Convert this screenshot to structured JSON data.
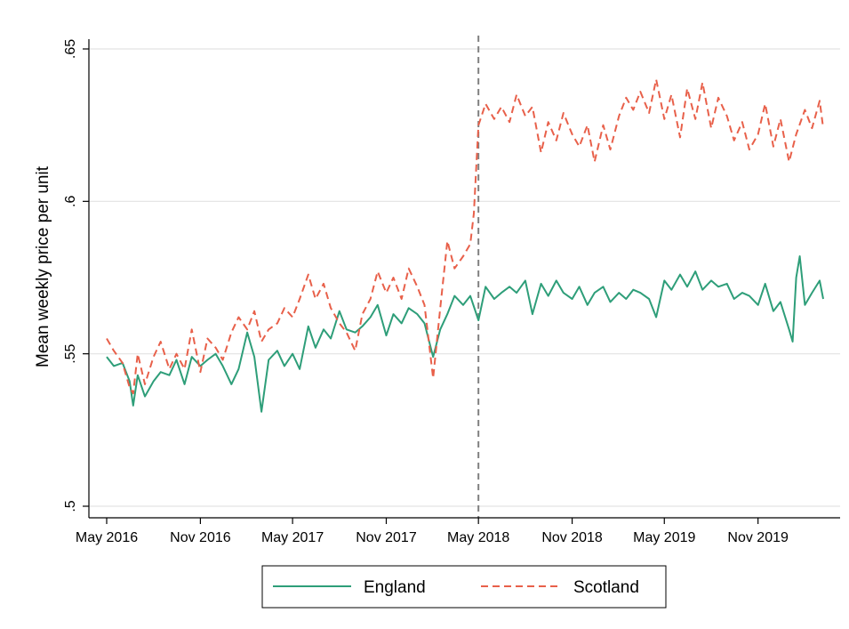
{
  "chart_data": {
    "type": "line",
    "title": "",
    "xlabel": "",
    "ylabel": "Mean weekly price per unit",
    "ylim": [
      0.5,
      0.65
    ],
    "xlim": [
      "2016-05-01",
      "2020-03-15"
    ],
    "yticks": [
      {
        "value": 0.5,
        "label": ".5"
      },
      {
        "value": 0.55,
        "label": ".55"
      },
      {
        "value": 0.6,
        "label": ".6"
      },
      {
        "value": 0.65,
        "label": ".65"
      }
    ],
    "xticks": [
      {
        "date": "2016-05-01",
        "label": "May 2016"
      },
      {
        "date": "2016-11-01",
        "label": "Nov 2016"
      },
      {
        "date": "2017-05-01",
        "label": "May 2017"
      },
      {
        "date": "2017-11-01",
        "label": "Nov 2017"
      },
      {
        "date": "2018-05-01",
        "label": "May 2018"
      },
      {
        "date": "2018-11-01",
        "label": "Nov 2018"
      },
      {
        "date": "2019-05-01",
        "label": "May 2019"
      },
      {
        "date": "2019-11-01",
        "label": "Nov 2019"
      }
    ],
    "grid": true,
    "vline": {
      "date": "2018-05-01",
      "style": "dashed",
      "color": "#808080"
    },
    "legend_position": "bottom",
    "series": [
      {
        "name": "England",
        "color": "#2e9e79",
        "dash": "solid",
        "points": [
          [
            "2016-05-01",
            0.549
          ],
          [
            "2016-05-15",
            0.546
          ],
          [
            "2016-06-01",
            0.547
          ],
          [
            "2016-06-15",
            0.541
          ],
          [
            "2016-06-22",
            0.533
          ],
          [
            "2016-07-01",
            0.543
          ],
          [
            "2016-07-15",
            0.536
          ],
          [
            "2016-08-01",
            0.541
          ],
          [
            "2016-08-15",
            0.544
          ],
          [
            "2016-09-01",
            0.543
          ],
          [
            "2016-09-15",
            0.548
          ],
          [
            "2016-10-01",
            0.54
          ],
          [
            "2016-10-15",
            0.549
          ],
          [
            "2016-11-01",
            0.546
          ],
          [
            "2016-11-15",
            0.548
          ],
          [
            "2016-12-01",
            0.55
          ],
          [
            "2016-12-15",
            0.546
          ],
          [
            "2017-01-01",
            0.54
          ],
          [
            "2017-01-15",
            0.545
          ],
          [
            "2017-02-01",
            0.557
          ],
          [
            "2017-02-15",
            0.549
          ],
          [
            "2017-03-01",
            0.531
          ],
          [
            "2017-03-15",
            0.548
          ],
          [
            "2017-04-01",
            0.551
          ],
          [
            "2017-04-15",
            0.546
          ],
          [
            "2017-05-01",
            0.55
          ],
          [
            "2017-05-15",
            0.545
          ],
          [
            "2017-06-01",
            0.559
          ],
          [
            "2017-06-15",
            0.552
          ],
          [
            "2017-07-01",
            0.558
          ],
          [
            "2017-07-15",
            0.555
          ],
          [
            "2017-08-01",
            0.564
          ],
          [
            "2017-08-15",
            0.558
          ],
          [
            "2017-09-01",
            0.557
          ],
          [
            "2017-09-15",
            0.559
          ],
          [
            "2017-10-01",
            0.562
          ],
          [
            "2017-10-15",
            0.566
          ],
          [
            "2017-11-01",
            0.556
          ],
          [
            "2017-11-15",
            0.563
          ],
          [
            "2017-12-01",
            0.56
          ],
          [
            "2017-12-15",
            0.565
          ],
          [
            "2018-01-01",
            0.563
          ],
          [
            "2018-01-15",
            0.56
          ],
          [
            "2018-02-01",
            0.549
          ],
          [
            "2018-02-15",
            0.558
          ],
          [
            "2018-03-01",
            0.563
          ],
          [
            "2018-03-15",
            0.569
          ],
          [
            "2018-04-01",
            0.566
          ],
          [
            "2018-04-15",
            0.569
          ],
          [
            "2018-05-01",
            0.561
          ],
          [
            "2018-05-15",
            0.572
          ],
          [
            "2018-06-01",
            0.568
          ],
          [
            "2018-06-15",
            0.57
          ],
          [
            "2018-07-01",
            0.572
          ],
          [
            "2018-07-15",
            0.57
          ],
          [
            "2018-08-01",
            0.574
          ],
          [
            "2018-08-15",
            0.563
          ],
          [
            "2018-09-01",
            0.573
          ],
          [
            "2018-09-15",
            0.569
          ],
          [
            "2018-10-01",
            0.574
          ],
          [
            "2018-10-15",
            0.57
          ],
          [
            "2018-11-01",
            0.568
          ],
          [
            "2018-11-15",
            0.572
          ],
          [
            "2018-12-01",
            0.566
          ],
          [
            "2018-12-15",
            0.57
          ],
          [
            "2019-01-01",
            0.572
          ],
          [
            "2019-01-15",
            0.567
          ],
          [
            "2019-02-01",
            0.57
          ],
          [
            "2019-02-15",
            0.568
          ],
          [
            "2019-03-01",
            0.571
          ],
          [
            "2019-03-15",
            0.57
          ],
          [
            "2019-04-01",
            0.568
          ],
          [
            "2019-04-15",
            0.562
          ],
          [
            "2019-05-01",
            0.574
          ],
          [
            "2019-05-15",
            0.571
          ],
          [
            "2019-06-01",
            0.576
          ],
          [
            "2019-06-15",
            0.572
          ],
          [
            "2019-07-01",
            0.577
          ],
          [
            "2019-07-15",
            0.571
          ],
          [
            "2019-08-01",
            0.574
          ],
          [
            "2019-08-15",
            0.572
          ],
          [
            "2019-09-01",
            0.573
          ],
          [
            "2019-09-15",
            0.568
          ],
          [
            "2019-10-01",
            0.57
          ],
          [
            "2019-10-15",
            0.569
          ],
          [
            "2019-11-01",
            0.566
          ],
          [
            "2019-11-15",
            0.573
          ],
          [
            "2019-12-01",
            0.564
          ],
          [
            "2019-12-15",
            0.567
          ],
          [
            "2020-01-01",
            0.558
          ],
          [
            "2020-01-08",
            0.554
          ],
          [
            "2020-01-15",
            0.575
          ],
          [
            "2020-01-22",
            0.582
          ],
          [
            "2020-02-01",
            0.566
          ],
          [
            "2020-02-15",
            0.57
          ],
          [
            "2020-03-01",
            0.574
          ],
          [
            "2020-03-08",
            0.568
          ]
        ]
      },
      {
        "name": "Scotland",
        "color": "#e8604a",
        "dash": "dashed",
        "points": [
          [
            "2016-05-01",
            0.555
          ],
          [
            "2016-05-15",
            0.551
          ],
          [
            "2016-06-01",
            0.547
          ],
          [
            "2016-06-15",
            0.539
          ],
          [
            "2016-06-22",
            0.537
          ],
          [
            "2016-07-01",
            0.55
          ],
          [
            "2016-07-15",
            0.54
          ],
          [
            "2016-08-01",
            0.549
          ],
          [
            "2016-08-15",
            0.554
          ],
          [
            "2016-09-01",
            0.545
          ],
          [
            "2016-09-15",
            0.55
          ],
          [
            "2016-10-01",
            0.545
          ],
          [
            "2016-10-15",
            0.558
          ],
          [
            "2016-11-01",
            0.544
          ],
          [
            "2016-11-15",
            0.555
          ],
          [
            "2016-12-01",
            0.552
          ],
          [
            "2016-12-15",
            0.548
          ],
          [
            "2017-01-01",
            0.557
          ],
          [
            "2017-01-15",
            0.562
          ],
          [
            "2017-02-01",
            0.558
          ],
          [
            "2017-02-15",
            0.564
          ],
          [
            "2017-03-01",
            0.554
          ],
          [
            "2017-03-15",
            0.558
          ],
          [
            "2017-04-01",
            0.56
          ],
          [
            "2017-04-15",
            0.565
          ],
          [
            "2017-05-01",
            0.562
          ],
          [
            "2017-05-15",
            0.568
          ],
          [
            "2017-06-01",
            0.576
          ],
          [
            "2017-06-15",
            0.568
          ],
          [
            "2017-07-01",
            0.573
          ],
          [
            "2017-07-15",
            0.565
          ],
          [
            "2017-08-01",
            0.56
          ],
          [
            "2017-08-15",
            0.557
          ],
          [
            "2017-09-01",
            0.551
          ],
          [
            "2017-09-15",
            0.563
          ],
          [
            "2017-10-01",
            0.568
          ],
          [
            "2017-10-15",
            0.577
          ],
          [
            "2017-11-01",
            0.57
          ],
          [
            "2017-11-15",
            0.575
          ],
          [
            "2017-12-01",
            0.568
          ],
          [
            "2017-12-15",
            0.578
          ],
          [
            "2018-01-01",
            0.572
          ],
          [
            "2018-01-15",
            0.566
          ],
          [
            "2018-02-01",
            0.542
          ],
          [
            "2018-02-15",
            0.565
          ],
          [
            "2018-03-01",
            0.587
          ],
          [
            "2018-03-15",
            0.578
          ],
          [
            "2018-04-01",
            0.582
          ],
          [
            "2018-04-15",
            0.586
          ],
          [
            "2018-04-22",
            0.596
          ],
          [
            "2018-05-01",
            0.625
          ],
          [
            "2018-05-15",
            0.632
          ],
          [
            "2018-06-01",
            0.627
          ],
          [
            "2018-06-15",
            0.631
          ],
          [
            "2018-07-01",
            0.626
          ],
          [
            "2018-07-15",
            0.635
          ],
          [
            "2018-08-01",
            0.628
          ],
          [
            "2018-08-15",
            0.631
          ],
          [
            "2018-09-01",
            0.616
          ],
          [
            "2018-09-15",
            0.626
          ],
          [
            "2018-10-01",
            0.62
          ],
          [
            "2018-10-15",
            0.629
          ],
          [
            "2018-11-01",
            0.622
          ],
          [
            "2018-11-15",
            0.618
          ],
          [
            "2018-12-01",
            0.625
          ],
          [
            "2018-12-15",
            0.613
          ],
          [
            "2019-01-01",
            0.625
          ],
          [
            "2019-01-15",
            0.617
          ],
          [
            "2019-02-01",
            0.628
          ],
          [
            "2019-02-15",
            0.634
          ],
          [
            "2019-03-01",
            0.63
          ],
          [
            "2019-03-15",
            0.636
          ],
          [
            "2019-04-01",
            0.629
          ],
          [
            "2019-04-15",
            0.64
          ],
          [
            "2019-05-01",
            0.627
          ],
          [
            "2019-05-15",
            0.635
          ],
          [
            "2019-06-01",
            0.621
          ],
          [
            "2019-06-15",
            0.637
          ],
          [
            "2019-07-01",
            0.627
          ],
          [
            "2019-07-15",
            0.639
          ],
          [
            "2019-08-01",
            0.624
          ],
          [
            "2019-08-15",
            0.634
          ],
          [
            "2019-09-01",
            0.628
          ],
          [
            "2019-09-15",
            0.62
          ],
          [
            "2019-10-01",
            0.626
          ],
          [
            "2019-10-15",
            0.617
          ],
          [
            "2019-11-01",
            0.622
          ],
          [
            "2019-11-15",
            0.632
          ],
          [
            "2019-12-01",
            0.618
          ],
          [
            "2019-12-15",
            0.627
          ],
          [
            "2020-01-01",
            0.613
          ],
          [
            "2020-01-15",
            0.622
          ],
          [
            "2020-02-01",
            0.63
          ],
          [
            "2020-02-15",
            0.624
          ],
          [
            "2020-03-01",
            0.633
          ],
          [
            "2020-03-08",
            0.624
          ]
        ]
      }
    ]
  }
}
